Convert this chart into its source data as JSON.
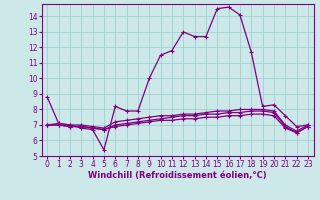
{
  "xlabel": "Windchill (Refroidissement éolien,°C)",
  "x": [
    0,
    1,
    2,
    3,
    4,
    5,
    6,
    7,
    8,
    9,
    10,
    11,
    12,
    13,
    14,
    15,
    16,
    17,
    18,
    19,
    20,
    21,
    22,
    23
  ],
  "line1": [
    8.8,
    7.1,
    7.0,
    6.8,
    6.7,
    5.4,
    8.2,
    7.9,
    7.9,
    10.0,
    11.5,
    11.8,
    13.0,
    12.7,
    12.7,
    14.5,
    14.6,
    14.1,
    11.7,
    8.2,
    8.3,
    7.6,
    6.9,
    7.0
  ],
  "line2": [
    7.0,
    7.1,
    7.0,
    7.0,
    6.9,
    6.8,
    7.2,
    7.3,
    7.4,
    7.5,
    7.6,
    7.6,
    7.7,
    7.7,
    7.8,
    7.9,
    7.9,
    8.0,
    8.0,
    8.0,
    7.9,
    7.0,
    6.6,
    7.0
  ],
  "line3": [
    7.0,
    7.0,
    6.9,
    6.9,
    6.8,
    6.7,
    7.0,
    7.1,
    7.2,
    7.3,
    7.4,
    7.5,
    7.6,
    7.6,
    7.7,
    7.7,
    7.8,
    7.8,
    7.9,
    7.9,
    7.8,
    6.9,
    6.5,
    6.9
  ],
  "line4": [
    7.0,
    7.0,
    6.9,
    6.9,
    6.8,
    6.7,
    6.9,
    7.0,
    7.1,
    7.2,
    7.3,
    7.3,
    7.4,
    7.4,
    7.5,
    7.5,
    7.6,
    7.6,
    7.7,
    7.7,
    7.6,
    6.8,
    6.5,
    6.9
  ],
  "line_color": "#800080",
  "bg_color": "#cce8e8",
  "grid_color": "#99cccc",
  "ylim": [
    5,
    14.8
  ],
  "xlim": [
    -0.5,
    23.5
  ],
  "yticks": [
    5,
    6,
    7,
    8,
    9,
    10,
    11,
    12,
    13,
    14
  ],
  "xticks": [
    0,
    1,
    2,
    3,
    4,
    5,
    6,
    7,
    8,
    9,
    10,
    11,
    12,
    13,
    14,
    15,
    16,
    17,
    18,
    19,
    20,
    21,
    22,
    23
  ],
  "tick_fontsize": 5.5,
  "xlabel_fontsize": 6.0
}
